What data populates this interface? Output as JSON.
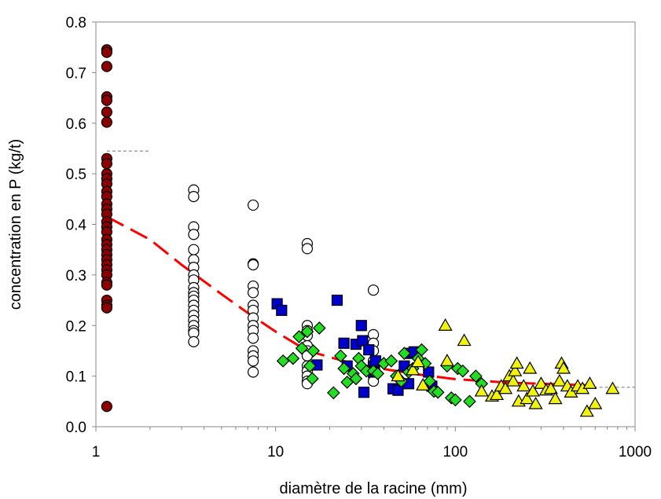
{
  "chart_data": {
    "type": "scatter",
    "xlabel": "diamètre de la racine (mm)",
    "ylabel": "concentration en P (kg/t)",
    "x_scale": "log",
    "xlim": [
      1,
      1000
    ],
    "ylim": [
      0,
      0.8
    ],
    "x_ticks": [
      "1",
      "10",
      "100",
      "1000"
    ],
    "y_ticks": [
      "0.0",
      "0.1",
      "0.2",
      "0.3",
      "0.4",
      "0.5",
      "0.6",
      "0.7",
      "0.8"
    ],
    "grid": false,
    "legend": "none",
    "series": [
      {
        "marker": "circle",
        "fill": "#8B0000",
        "points": [
          [
            1.15,
            0.745
          ],
          [
            1.15,
            0.74
          ],
          [
            1.15,
            0.712
          ],
          [
            1.15,
            0.652
          ],
          [
            1.15,
            0.645
          ],
          [
            1.15,
            0.622
          ],
          [
            1.15,
            0.602
          ],
          [
            1.15,
            0.53
          ],
          [
            1.15,
            0.52
          ],
          [
            1.15,
            0.5
          ],
          [
            1.15,
            0.49
          ],
          [
            1.15,
            0.48
          ],
          [
            1.15,
            0.465
          ],
          [
            1.15,
            0.455
          ],
          [
            1.15,
            0.44
          ],
          [
            1.15,
            0.43
          ],
          [
            1.15,
            0.42
          ],
          [
            1.15,
            0.405
          ],
          [
            1.15,
            0.395
          ],
          [
            1.15,
            0.385
          ],
          [
            1.15,
            0.37
          ],
          [
            1.15,
            0.36
          ],
          [
            1.15,
            0.35
          ],
          [
            1.15,
            0.34
          ],
          [
            1.15,
            0.33
          ],
          [
            1.15,
            0.32
          ],
          [
            1.15,
            0.31
          ],
          [
            1.15,
            0.3
          ],
          [
            1.15,
            0.285
          ],
          [
            1.15,
            0.28
          ],
          [
            1.15,
            0.25
          ],
          [
            1.15,
            0.24
          ],
          [
            1.15,
            0.235
          ],
          [
            1.15,
            0.04
          ]
        ]
      },
      {
        "marker": "circle",
        "fill": "#ffffff",
        "points": [
          [
            3.5,
            0.468
          ],
          [
            3.5,
            0.455
          ],
          [
            3.5,
            0.395
          ],
          [
            3.5,
            0.38
          ],
          [
            3.5,
            0.35
          ],
          [
            3.5,
            0.33
          ],
          [
            3.5,
            0.315
          ],
          [
            3.5,
            0.3
          ],
          [
            3.5,
            0.29
          ],
          [
            3.5,
            0.275
          ],
          [
            3.5,
            0.265
          ],
          [
            3.5,
            0.258
          ],
          [
            3.5,
            0.25
          ],
          [
            3.5,
            0.24
          ],
          [
            3.5,
            0.23
          ],
          [
            3.5,
            0.22
          ],
          [
            3.5,
            0.21
          ],
          [
            3.5,
            0.2
          ],
          [
            3.5,
            0.19
          ],
          [
            3.5,
            0.185
          ],
          [
            3.5,
            0.168
          ],
          [
            7.5,
            0.438
          ],
          [
            7.5,
            0.322
          ],
          [
            7.5,
            0.32
          ],
          [
            7.5,
            0.278
          ],
          [
            7.5,
            0.265
          ],
          [
            7.5,
            0.24
          ],
          [
            7.5,
            0.23
          ],
          [
            7.5,
            0.215
          ],
          [
            7.5,
            0.2
          ],
          [
            7.5,
            0.19
          ],
          [
            7.5,
            0.175
          ],
          [
            7.5,
            0.15
          ],
          [
            7.5,
            0.14
          ],
          [
            7.5,
            0.13
          ],
          [
            7.5,
            0.108
          ],
          [
            15,
            0.362
          ],
          [
            15,
            0.352
          ],
          [
            15,
            0.2
          ],
          [
            15,
            0.19
          ],
          [
            15,
            0.18
          ],
          [
            15,
            0.16
          ],
          [
            15,
            0.15
          ],
          [
            15,
            0.14
          ],
          [
            15,
            0.12
          ],
          [
            15,
            0.11
          ],
          [
            15,
            0.1
          ],
          [
            15,
            0.09
          ],
          [
            15,
            0.085
          ],
          [
            35,
            0.27
          ],
          [
            35,
            0.182
          ],
          [
            35,
            0.165
          ],
          [
            35,
            0.15
          ],
          [
            35,
            0.13
          ],
          [
            35,
            0.12
          ],
          [
            35,
            0.1
          ],
          [
            35,
            0.09
          ]
        ]
      },
      {
        "marker": "square",
        "fill": "#0000CC",
        "points": [
          [
            10.2,
            0.243
          ],
          [
            10.8,
            0.23
          ],
          [
            17,
            0.122
          ],
          [
            22,
            0.25
          ],
          [
            24,
            0.165
          ],
          [
            25,
            0.12
          ],
          [
            28,
            0.163
          ],
          [
            30,
            0.2
          ],
          [
            30.5,
            0.17
          ],
          [
            31,
            0.068
          ],
          [
            33,
            0.152
          ],
          [
            35,
            0.12
          ],
          [
            35.5,
            0.108
          ],
          [
            36,
            0.13
          ],
          [
            45,
            0.075
          ],
          [
            48,
            0.072
          ],
          [
            52,
            0.12
          ],
          [
            55,
            0.085
          ],
          [
            56,
            0.145
          ],
          [
            59,
            0.148
          ],
          [
            71,
            0.108
          ],
          [
            74,
            0.08
          ]
        ]
      },
      {
        "marker": "diamond",
        "fill": "#22DD22",
        "points": [
          [
            11,
            0.13
          ],
          [
            12.5,
            0.135
          ],
          [
            13.5,
            0.178
          ],
          [
            14,
            0.155
          ],
          [
            15,
            0.188
          ],
          [
            15.5,
            0.12
          ],
          [
            16,
            0.095
          ],
          [
            16.2,
            0.15
          ],
          [
            17.5,
            0.195
          ],
          [
            21,
            0.067
          ],
          [
            23,
            0.14
          ],
          [
            24,
            0.115
          ],
          [
            25,
            0.088
          ],
          [
            27,
            0.105
          ],
          [
            28,
            0.095
          ],
          [
            29,
            0.135
          ],
          [
            30,
            0.12
          ],
          [
            32,
            0.11
          ],
          [
            35,
            0.11
          ],
          [
            37,
            0.105
          ],
          [
            40,
            0.125
          ],
          [
            44,
            0.13
          ],
          [
            47,
            0.1
          ],
          [
            50,
            0.09
          ],
          [
            52,
            0.145
          ],
          [
            55,
            0.108
          ],
          [
            58,
            0.115
          ],
          [
            62,
            0.135
          ],
          [
            65,
            0.152
          ],
          [
            68,
            0.125
          ],
          [
            72,
            0.09
          ],
          [
            76,
            0.07
          ],
          [
            80,
            0.068
          ],
          [
            90,
            0.12
          ],
          [
            95,
            0.057
          ],
          [
            100,
            0.053
          ],
          [
            103,
            0.115
          ],
          [
            110,
            0.11
          ],
          [
            120,
            0.05
          ],
          [
            130,
            0.1
          ],
          [
            140,
            0.085
          ]
        ]
      },
      {
        "marker": "triangle",
        "fill": "#F2F20F",
        "points": [
          [
            48,
            0.1
          ],
          [
            58,
            0.112
          ],
          [
            62,
            0.128
          ],
          [
            66,
            0.082
          ],
          [
            88,
            0.2
          ],
          [
            90,
            0.13
          ],
          [
            112,
            0.17
          ],
          [
            140,
            0.07
          ],
          [
            160,
            0.06
          ],
          [
            170,
            0.063
          ],
          [
            180,
            0.08
          ],
          [
            190,
            0.075
          ],
          [
            200,
            0.1
          ],
          [
            210,
            0.09
          ],
          [
            215,
            0.11
          ],
          [
            220,
            0.125
          ],
          [
            225,
            0.05
          ],
          [
            240,
            0.08
          ],
          [
            250,
            0.055
          ],
          [
            260,
            0.115
          ],
          [
            270,
            0.07
          ],
          [
            280,
            0.045
          ],
          [
            300,
            0.085
          ],
          [
            320,
            0.072
          ],
          [
            340,
            0.075
          ],
          [
            360,
            0.055
          ],
          [
            380,
            0.09
          ],
          [
            390,
            0.125
          ],
          [
            400,
            0.115
          ],
          [
            420,
            0.08
          ],
          [
            440,
            0.068
          ],
          [
            480,
            0.08
          ],
          [
            510,
            0.075
          ],
          [
            540,
            0.03
          ],
          [
            560,
            0.085
          ],
          [
            600,
            0.045
          ],
          [
            750,
            0.075
          ]
        ]
      }
    ],
    "lines": [
      {
        "style": "dashed",
        "color": "#FF0000",
        "points": [
          [
            1.15,
            0.415
          ],
          [
            2,
            0.37
          ],
          [
            3,
            0.32
          ],
          [
            5,
            0.262
          ],
          [
            7,
            0.225
          ],
          [
            10,
            0.188
          ],
          [
            15,
            0.15
          ],
          [
            25,
            0.128
          ],
          [
            40,
            0.114
          ],
          [
            60,
            0.104
          ],
          [
            100,
            0.094
          ],
          [
            200,
            0.087
          ],
          [
            550,
            0.082
          ]
        ]
      },
      {
        "style": "dashed",
        "color": "#808080",
        "points": [
          [
            1.15,
            0.545
          ],
          [
            2,
            0.545
          ]
        ]
      },
      {
        "style": "dashed",
        "color": "#808080",
        "points": [
          [
            550,
            0.078
          ],
          [
            1000,
            0.078
          ]
        ]
      }
    ]
  }
}
